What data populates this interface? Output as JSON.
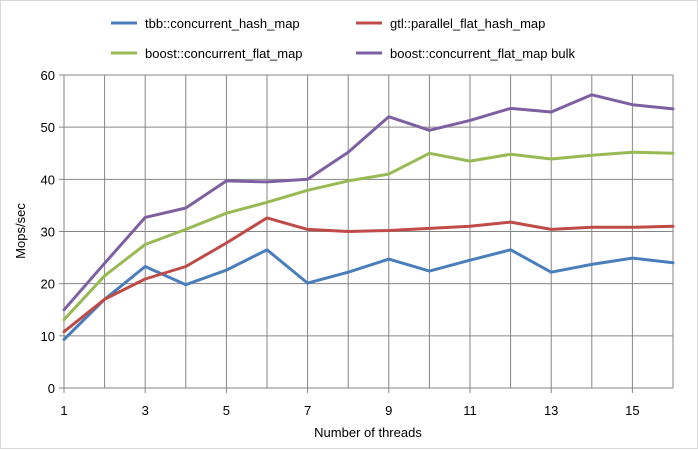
{
  "chart_data": {
    "type": "line",
    "title": "",
    "xlabel": "Number of threads",
    "ylabel": "Mops/sec",
    "x": [
      1,
      2,
      3,
      4,
      5,
      6,
      7,
      8,
      9,
      10,
      11,
      12,
      13,
      14,
      15,
      16
    ],
    "xlim": [
      1,
      16
    ],
    "ylim": [
      0,
      60
    ],
    "xticks": [
      1,
      3,
      5,
      7,
      9,
      11,
      13,
      15
    ],
    "yticks": [
      0,
      10,
      20,
      30,
      40,
      50,
      60
    ],
    "xtick_labels": [
      "1",
      "3",
      "5",
      "7",
      "9",
      "11",
      "13",
      "15"
    ],
    "ytick_labels": [
      "0",
      "10",
      "20",
      "30",
      "40",
      "50",
      "60"
    ],
    "grid": "vertical and horizontal",
    "legend": "top",
    "series": [
      {
        "name": "tbb::concurrent_hash_map",
        "color": "#4a7ebb",
        "values": [
          9.3,
          17.0,
          23.3,
          19.8,
          22.6,
          26.5,
          20.1,
          22.2,
          24.7,
          22.4,
          24.5,
          26.5,
          22.2,
          23.7,
          24.9,
          24.0
        ]
      },
      {
        "name": "gtl::parallel_flat_hash_map",
        "color": "#be4b48",
        "values": [
          10.8,
          17.0,
          20.9,
          23.3,
          27.8,
          32.6,
          30.4,
          30.0,
          30.2,
          30.6,
          31.0,
          31.8,
          30.4,
          30.8,
          30.8,
          31.0
        ]
      },
      {
        "name": "boost::concurrent_flat_map",
        "color": "#98b954",
        "values": [
          13.1,
          21.5,
          27.5,
          30.4,
          33.5,
          35.6,
          37.9,
          39.7,
          41.0,
          45.0,
          43.5,
          44.8,
          43.9,
          44.6,
          45.2,
          45.0
        ]
      },
      {
        "name": "boost::concurrent_flat_map bulk",
        "color": "#7d60a0",
        "values": [
          15.0,
          23.9,
          32.7,
          34.5,
          39.7,
          39.5,
          40.0,
          45.2,
          52.0,
          49.4,
          51.3,
          53.6,
          52.9,
          56.2,
          54.3,
          53.5
        ]
      }
    ]
  }
}
